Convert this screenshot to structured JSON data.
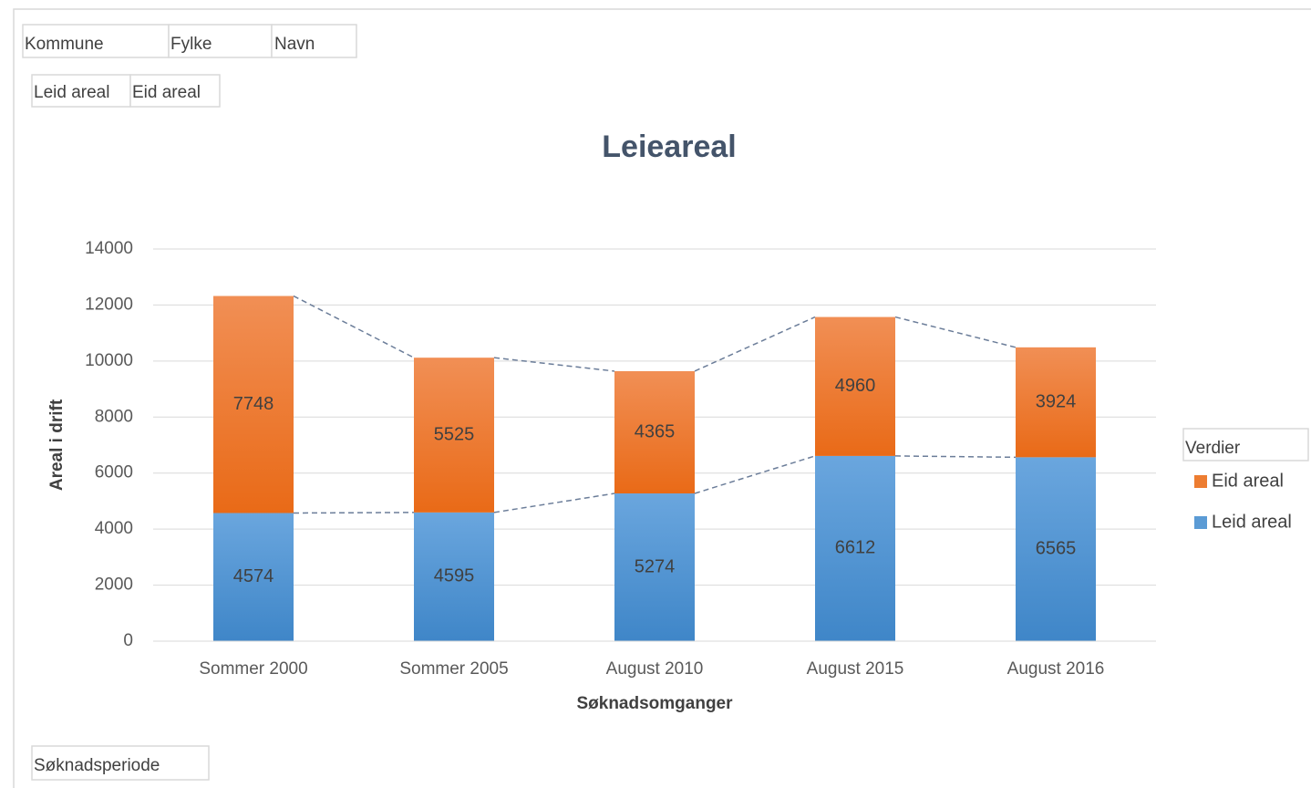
{
  "filter_buttons": [
    "Kommune",
    "Fylke",
    "Navn"
  ],
  "legend_buttons": [
    "Leid areal",
    "Eid areal"
  ],
  "axis_button": "Søknadsperiode",
  "chart_data": {
    "type": "bar",
    "stacked": true,
    "title": "Leieareal",
    "x_label": "Søknadsomganger",
    "y_label": "Areal i drift",
    "legend_title": "Verdier",
    "legend": "right",
    "grid": true,
    "series_lines": true,
    "categories": [
      "Sommer 2000",
      "Sommer 2005",
      "August 2010",
      "August 2015",
      "August 2016"
    ],
    "series": [
      {
        "name": "Leid areal",
        "color": "#5b9bd5",
        "values": [
          4574,
          4595,
          5274,
          6612,
          6565
        ]
      },
      {
        "name": "Eid areal",
        "color": "#ed7d31",
        "values": [
          7748,
          5525,
          4365,
          4960,
          3924
        ]
      }
    ],
    "ylim": [
      0,
      14000
    ],
    "yticks": [
      0,
      2000,
      4000,
      6000,
      8000,
      10000,
      12000,
      14000
    ]
  }
}
